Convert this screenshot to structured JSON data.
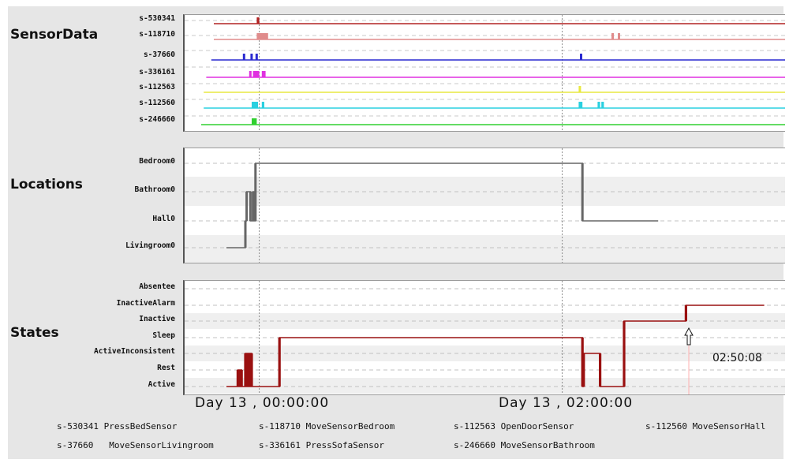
{
  "panels": [
    {
      "title": "SensorData"
    },
    {
      "title": "Locations"
    },
    {
      "title": "States"
    }
  ],
  "time_labels": [
    "Day  13 , 00:00:00",
    "Day  13 , 02:00:00"
  ],
  "legend": [
    {
      "id": "s-530341",
      "name": "PressBedSensor"
    },
    {
      "id": "s-118710",
      "name": "MoveSensorBedroom"
    },
    {
      "id": "s-112563",
      "name": "OpenDoorSensor"
    },
    {
      "id": "s-112560",
      "name": "MoveSensorHall"
    },
    {
      "id": "s-37660",
      "name": "MoveSensorLivingroom"
    },
    {
      "id": "s-336161",
      "name": "PressSofaSensor"
    },
    {
      "id": "s-246660",
      "name": "MoveSensorBathroom"
    }
  ],
  "annotation": {
    "label": "02:50:08"
  },
  "chart_data": [
    {
      "type": "line",
      "title": "SensorData",
      "x_unit": "minutes relative to Day 13, 00:00:00",
      "xlim": [
        -23,
        158
      ],
      "x_ticks": [
        {
          "label": "Day  13 , 00:00:00",
          "x": 0
        },
        {
          "label": "Day  13 , 02:00:00",
          "x": 120
        }
      ],
      "categories": [
        "s-530341",
        "s-118710",
        "s-37660",
        "s-336161",
        "s-112563",
        "s-112560",
        "s-246660"
      ],
      "series": [
        {
          "name": "s-530341",
          "color": "#b22222",
          "start": -18,
          "pulses": [
            [
              -1,
              0
            ]
          ]
        },
        {
          "name": "s-118710",
          "color": "#e08c8c",
          "start": -18,
          "pulses": [
            [
              -1,
              3.5
            ],
            [
              139.5,
              140
            ],
            [
              142,
              142.5
            ]
          ]
        },
        {
          "name": "s-37660",
          "color": "#2a2ad0",
          "start": -19,
          "pulses": [
            [
              -6.5,
              -6
            ],
            [
              -3.5,
              -3
            ],
            [
              -1.5,
              -1
            ],
            [
              127,
              127.5
            ]
          ]
        },
        {
          "name": "s-336161",
          "color": "#e030e0",
          "start": -21,
          "pulses": [
            [
              -4,
              -3.5
            ],
            [
              -2.5,
              0
            ],
            [
              1,
              2.5
            ]
          ]
        },
        {
          "name": "s-112563",
          "color": "#e8e840",
          "start": -22,
          "pulses": [
            [
              126.5,
              127
            ]
          ]
        },
        {
          "name": "s-112560",
          "color": "#2ad0e0",
          "start": -22,
          "pulses": [
            [
              -3,
              -0.5
            ],
            [
              1,
              2
            ],
            [
              126.5,
              128
            ],
            [
              134,
              135
            ],
            [
              135.5,
              136.5
            ]
          ]
        },
        {
          "name": "s-246660",
          "color": "#30d030",
          "start": -23,
          "pulses": [
            [
              -3,
              -1
            ]
          ]
        }
      ]
    },
    {
      "type": "line",
      "title": "Locations",
      "x_unit": "minutes relative to Day 13, 00:00:00",
      "xlim": [
        -23,
        158
      ],
      "categories": [
        "Bedroom0",
        "Bathroom0",
        "Hall0",
        "Livingroom0"
      ],
      "series": [
        {
          "name": "location",
          "color": "#666666",
          "steps": [
            [
              -13,
              "Livingroom0"
            ],
            [
              -5.5,
              "Hall0"
            ],
            [
              -5,
              "Bathroom0"
            ],
            [
              -3.5,
              "Hall0"
            ],
            [
              -2.5,
              "Bathroom0"
            ],
            [
              -2,
              "Hall0"
            ],
            [
              -1.5,
              "Bedroom0"
            ],
            [
              128,
              "Hall0"
            ],
            [
              158,
              "Hall0"
            ]
          ]
        }
      ]
    },
    {
      "type": "line",
      "title": "States",
      "x_unit": "minutes relative to Day 13, 00:00:00",
      "xlim": [
        -23,
        158
      ],
      "categories": [
        "Absentee",
        "InactiveAlarm",
        "Inactive",
        "Sleep",
        "ActiveInconsistent",
        "Rest",
        "Active"
      ],
      "series": [
        {
          "name": "state",
          "color": "#9a1010",
          "steps": [
            [
              -13,
              "Active"
            ],
            [
              -8.5,
              "Rest"
            ],
            [
              -8,
              "Active"
            ],
            [
              -7.5,
              "Rest"
            ],
            [
              -7,
              "Active"
            ],
            [
              -5.5,
              "ActiveInconsistent"
            ],
            [
              -5,
              "Active"
            ],
            [
              -4.5,
              "ActiveInconsistent"
            ],
            [
              -4,
              "Active"
            ],
            [
              -3.5,
              "ActiveInconsistent"
            ],
            [
              -3,
              "Active"
            ],
            [
              8,
              "Sleep"
            ],
            [
              128,
              "Active"
            ],
            [
              128.5,
              "ActiveInconsistent"
            ],
            [
              135,
              "Active"
            ],
            [
              144.5,
              "Inactive"
            ],
            [
              169,
              "InactiveAlarm"
            ],
            [
              200,
              "InactiveAlarm"
            ]
          ]
        }
      ],
      "annotations": [
        {
          "x": 170.13,
          "label": "02:50:08"
        }
      ]
    }
  ]
}
